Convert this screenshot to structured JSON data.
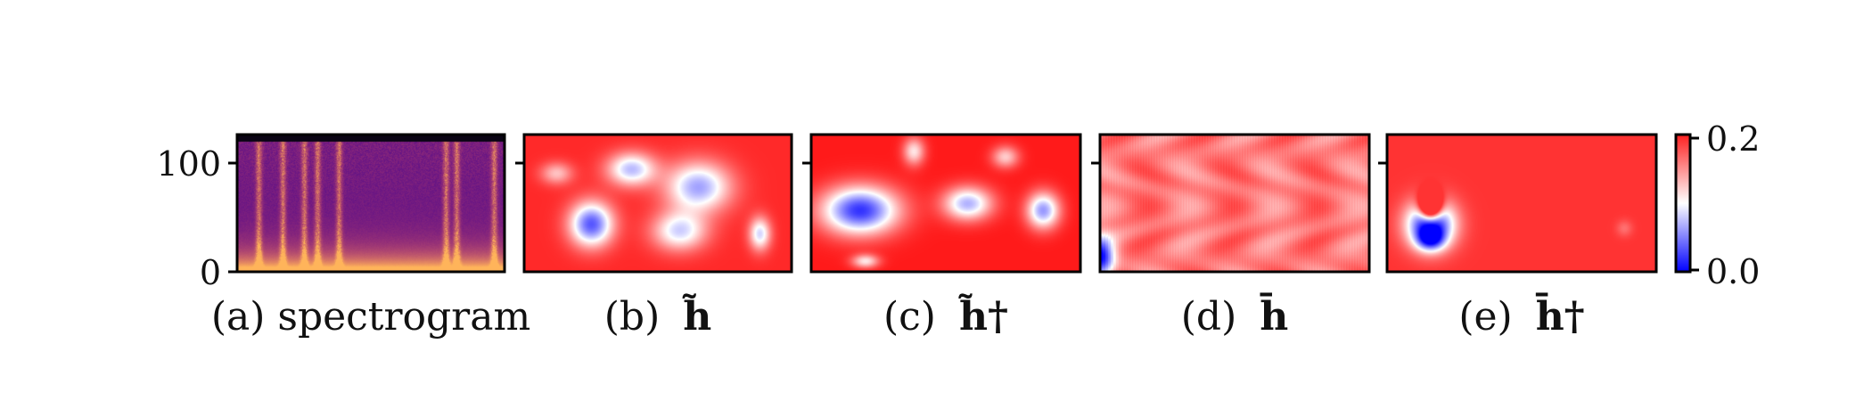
{
  "chart_data": {
    "type": "heatmap",
    "panels": [
      {
        "caption": "(a) spectrogram",
        "label": "(a)",
        "name": "spectrogram",
        "kind": "spectrogram"
      },
      {
        "caption": "(b) h̃",
        "label": "(b)",
        "name": "h̃",
        "kind": "heatmap",
        "scenario": "b"
      },
      {
        "caption": "(c) h̃†",
        "label": "(c)",
        "name": "h̃†",
        "kind": "heatmap",
        "scenario": "c"
      },
      {
        "caption": "(d) h̄",
        "label": "(d)",
        "name": "h̄",
        "kind": "heatmap",
        "scenario": "d"
      },
      {
        "caption": "(e) h̄†",
        "label": "(e)",
        "name": "h̄†",
        "kind": "heatmap",
        "scenario": "e"
      }
    ],
    "y_axis": {
      "ticks": [
        0,
        100
      ],
      "ylim": [
        0,
        128
      ]
    },
    "colorbar": {
      "ticks": [
        "0.0",
        "0.2"
      ],
      "vmin": 0.0,
      "vmax": 0.2,
      "colormap": "bwr"
    },
    "colors": {
      "low": "#0000ff",
      "mid": "#ffffff",
      "high": "#ff0000"
    },
    "grid": false
  }
}
